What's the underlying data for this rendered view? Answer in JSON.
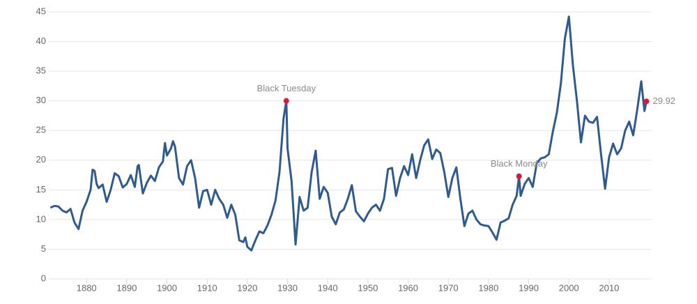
{
  "chart_data": {
    "type": "line",
    "x": [
      1871,
      1872,
      1873,
      1874,
      1875,
      1876,
      1877,
      1878,
      1879,
      1880,
      1881,
      1881.5,
      1882,
      1882.5,
      1883,
      1884,
      1885,
      1886,
      1887,
      1888,
      1889,
      1890,
      1891,
      1892,
      1892.7,
      1893,
      1894,
      1895,
      1896,
      1897,
      1898,
      1899,
      1899.5,
      1900,
      1901,
      1901.5,
      1902,
      1903,
      1904,
      1905,
      1906,
      1907,
      1908,
      1909,
      1910,
      1911,
      1912,
      1913,
      1914,
      1915,
      1916,
      1917,
      1918,
      1919,
      1919.5,
      1920,
      1921,
      1922,
      1923,
      1924,
      1925,
      1926,
      1927,
      1928,
      1929,
      1929.7,
      1930,
      1931,
      1932,
      1933,
      1934,
      1935,
      1936,
      1937,
      1938,
      1939,
      1940,
      1941,
      1942,
      1943,
      1944,
      1945,
      1946,
      1947,
      1948,
      1949,
      1950,
      1951,
      1952,
      1953,
      1954,
      1955,
      1956,
      1957,
      1958,
      1959,
      1960,
      1961,
      1962,
      1963,
      1964,
      1965,
      1966,
      1967,
      1968,
      1969,
      1970,
      1971,
      1972,
      1973,
      1974,
      1975,
      1976,
      1977,
      1978,
      1979,
      1980,
      1981,
      1982,
      1983,
      1984,
      1985,
      1986,
      1987,
      1987.6,
      1988,
      1989,
      1990,
      1991,
      1992,
      1993,
      1994,
      1995,
      1996,
      1997,
      1998,
      1999,
      2000,
      2001,
      2002,
      2003,
      2004,
      2005,
      2006,
      2007,
      2008,
      2009,
      2010,
      2011,
      2012,
      2013,
      2014,
      2015,
      2016,
      2017,
      2018,
      2018.8,
      2019.3
    ],
    "series": [
      {
        "color": "#2f5a8f",
        "values": [
          12.0,
          12.3,
          12.2,
          11.5,
          11.2,
          11.8,
          9.5,
          8.4,
          11.5,
          13.0,
          15.0,
          18.4,
          18.2,
          16.0,
          15.3,
          15.9,
          13.0,
          15.0,
          17.8,
          17.3,
          15.4,
          16.0,
          17.5,
          15.5,
          19.0,
          19.2,
          14.4,
          16.2,
          17.4,
          16.5,
          18.8,
          19.8,
          22.9,
          20.8,
          22.0,
          23.2,
          22.3,
          17.0,
          15.9,
          19.0,
          20.0,
          17.0,
          12.0,
          14.8,
          15.0,
          12.5,
          15.0,
          13.5,
          12.5,
          10.3,
          12.5,
          10.8,
          6.5,
          6.2,
          7.0,
          5.4,
          4.8,
          6.5,
          8.0,
          7.7,
          9.0,
          10.8,
          13.2,
          18.0,
          27.0,
          30.0,
          22.0,
          16.5,
          5.8,
          13.8,
          11.5,
          12.0,
          18.0,
          21.6,
          13.5,
          15.5,
          14.5,
          10.5,
          9.2,
          11.2,
          11.7,
          13.5,
          15.8,
          11.4,
          10.5,
          9.7,
          11.0,
          12.0,
          12.5,
          11.5,
          13.5,
          18.5,
          18.7,
          14.0,
          17.0,
          19.0,
          17.5,
          21.0,
          17.0,
          20.0,
          22.5,
          23.5,
          20.2,
          21.8,
          21.2,
          18.0,
          13.8,
          17.0,
          18.8,
          13.5,
          8.9,
          11.0,
          11.5,
          10.0,
          9.2,
          9.0,
          8.9,
          7.8,
          6.6,
          9.5,
          9.8,
          10.2,
          12.5,
          14.0,
          17.3,
          14.0,
          16.0,
          17.0,
          15.5,
          19.5,
          20.3,
          20.5,
          21.0,
          24.8,
          28.0,
          32.9,
          40.5,
          44.2,
          36.0,
          30.0,
          23.0,
          27.5,
          26.5,
          26.3,
          27.3,
          21.0,
          15.2,
          20.5,
          22.8,
          21.0,
          22.0,
          25.0,
          26.5,
          24.2,
          28.5,
          33.3,
          28.3,
          29.92
        ]
      }
    ],
    "annotations": [
      {
        "label": "Black Tuesday",
        "x": 1929.7,
        "y": 30.0
      },
      {
        "label": "Black Monday",
        "x": 1987.6,
        "y": 17.3
      },
      {
        "x": 2019.3,
        "y": 29.92
      }
    ],
    "marker_color": "#e0173b",
    "xlim": [
      1870.6,
      2020.6
    ],
    "xticks": [
      1880,
      1890,
      1900,
      1910,
      1920,
      1930,
      1940,
      1950,
      1960,
      1970,
      1980,
      1990,
      2000,
      2010
    ],
    "ylim": [
      0,
      45
    ],
    "yticks": [
      0,
      5,
      10,
      15,
      20,
      25,
      30,
      35,
      40,
      45
    ],
    "grid": true
  }
}
